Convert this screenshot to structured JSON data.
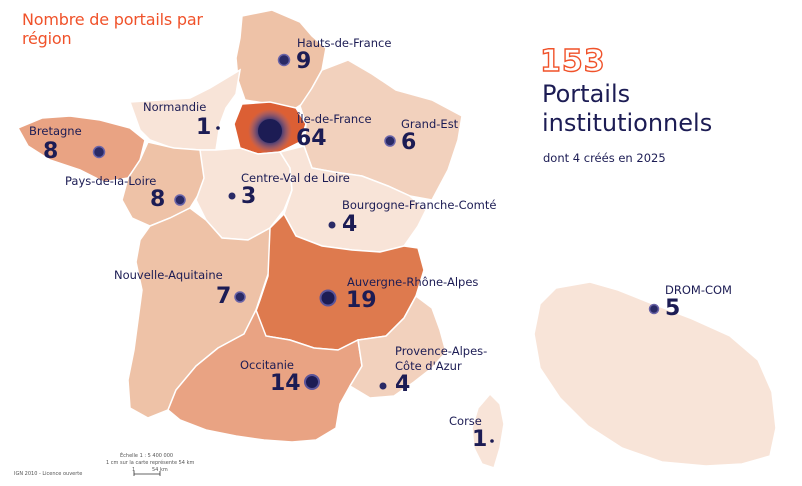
{
  "header": {
    "title": "Nombre de portails par région"
  },
  "summary": {
    "total": "153",
    "label": "Portails institutionnels",
    "sub": "dont 4 créés en 2025"
  },
  "colors": {
    "accent": "#f0522a",
    "navy": "#1c1c54",
    "tier_light": "#f8e4d8",
    "tier_mid": "#eec2a7",
    "tier_high": "#e9a383",
    "tier_max": "#de7a4e",
    "idf": "#dc5f34"
  },
  "regions": [
    {
      "id": "hauts-de-france",
      "name": "Hauts-de-France",
      "count": "9"
    },
    {
      "id": "normandie",
      "name": "Normandie",
      "count": "1"
    },
    {
      "id": "ile-de-france",
      "name": "Île-de-France",
      "count": "64"
    },
    {
      "id": "grand-est",
      "name": "Grand-Est",
      "count": "6"
    },
    {
      "id": "bretagne",
      "name": "Bretagne",
      "count": "8"
    },
    {
      "id": "pays-de-la-loire",
      "name": "Pays-de-la-Loire",
      "count": "8"
    },
    {
      "id": "centre-val-de-loire",
      "name": "Centre-Val de Loire",
      "count": "3"
    },
    {
      "id": "bourgogne-franche-comte",
      "name": "Bourgogne-Franche-Comté",
      "count": "4"
    },
    {
      "id": "nouvelle-aquitaine",
      "name": "Nouvelle-Aquitaine",
      "count": "7"
    },
    {
      "id": "auvergne-rhone-alpes",
      "name": "Auvergne-Rhône-Alpes",
      "count": "19"
    },
    {
      "id": "occitanie",
      "name": "Occitanie",
      "count": "14"
    },
    {
      "id": "paca",
      "name_line1": "Provence-Alpes-",
      "name_line2": "Côte d'Azur",
      "count": "4"
    },
    {
      "id": "corse",
      "name": "Corse",
      "count": "1"
    },
    {
      "id": "drom-com",
      "name": "DROM-COM",
      "count": "5"
    }
  ],
  "scale": {
    "line1": "Échelle 1 : 5 400 000",
    "line2": "1 cm sur la carte représente 54 km",
    "tick_left": "1",
    "tick_right": "54 km"
  },
  "source": "IGN 2010 - Licence ouverte"
}
